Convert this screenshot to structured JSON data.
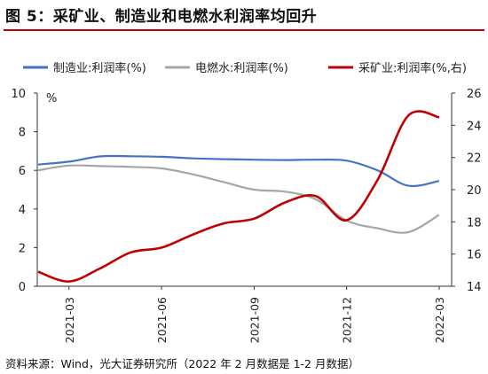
{
  "title": "图 5：采矿业、制造业和电燃水利润率均回升",
  "source": "资料来源：Wind，光大证券研究所（2022 年 2 月数据是 1-2 月数据）",
  "colors": {
    "title_rule": "#c00000",
    "manufacturing": "#4472c4",
    "utilities": "#a6a6a6",
    "mining": "#c00000"
  },
  "chart_data": {
    "type": "line",
    "unit_label": "%",
    "x_tick_labels": [
      "2021-03",
      "2021-06",
      "2021-09",
      "2021-12",
      "2022-03"
    ],
    "ylim_left": [
      0,
      10
    ],
    "yticks_left": [
      0,
      2,
      4,
      6,
      8,
      10
    ],
    "ylim_right": [
      14,
      26
    ],
    "yticks_right": [
      14,
      16,
      18,
      20,
      22,
      24,
      26
    ],
    "legend_position": "top",
    "grid": false,
    "series": [
      {
        "name": "制造业:利润率(%)",
        "axis": "left",
        "color": "#4472c4",
        "x": [
          "2021-02",
          "2021-03",
          "2021-04",
          "2021-05",
          "2021-06",
          "2021-07",
          "2021-08",
          "2021-09",
          "2021-10",
          "2021-11",
          "2021-12",
          "2022-01",
          "2022-02",
          "2022-03"
        ],
        "values": [
          6.3,
          6.45,
          6.72,
          6.73,
          6.7,
          6.62,
          6.58,
          6.55,
          6.53,
          6.55,
          6.5,
          6.0,
          5.2,
          5.45
        ]
      },
      {
        "name": "电燃水:利润率(%)",
        "axis": "left",
        "color": "#a6a6a6",
        "x": [
          "2021-02",
          "2021-03",
          "2021-04",
          "2021-05",
          "2021-06",
          "2021-07",
          "2021-08",
          "2021-09",
          "2021-10",
          "2021-11",
          "2021-12",
          "2022-01",
          "2022-02",
          "2022-03"
        ],
        "values": [
          6.0,
          6.25,
          6.22,
          6.18,
          6.1,
          5.8,
          5.4,
          5.0,
          4.9,
          4.5,
          3.4,
          3.0,
          2.8,
          3.7
        ]
      },
      {
        "name": "采矿业:利润率(%,右)",
        "axis": "right",
        "color": "#c00000",
        "x": [
          "2021-02",
          "2021-03",
          "2021-04",
          "2021-05",
          "2021-06",
          "2021-07",
          "2021-08",
          "2021-09",
          "2021-10",
          "2021-11",
          "2021-12",
          "2022-01",
          "2022-02",
          "2022-03"
        ],
        "values": [
          14.9,
          14.3,
          15.1,
          16.1,
          16.4,
          17.2,
          17.9,
          18.2,
          19.2,
          19.6,
          18.1,
          20.6,
          24.6,
          24.5
        ]
      }
    ]
  }
}
